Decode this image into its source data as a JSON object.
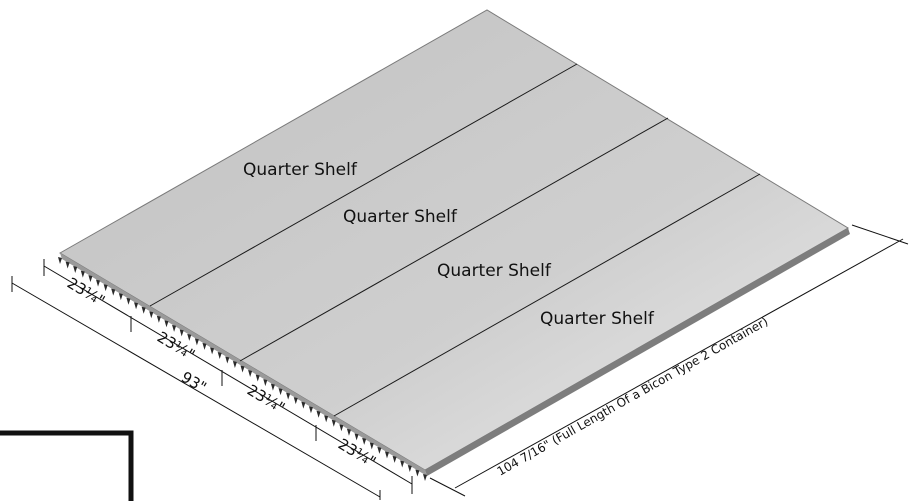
{
  "shelf_labels": [
    "Quarter Shelf",
    "Quarter Shelf",
    "Quarter Shelf",
    "Quarter Shelf"
  ],
  "section_dimensions": [
    "23¼\"",
    "23¼\"",
    "23¼\"",
    "23¼\""
  ],
  "total_width": "93\"",
  "total_length": "104 7/16\" (Full Length Of a Bicon Type 2 Container)",
  "colors": {
    "panel_top": "#c6c6c6",
    "panel_light": "#e4e4e4",
    "edge": "#8a8a8a",
    "line": "#111111"
  }
}
